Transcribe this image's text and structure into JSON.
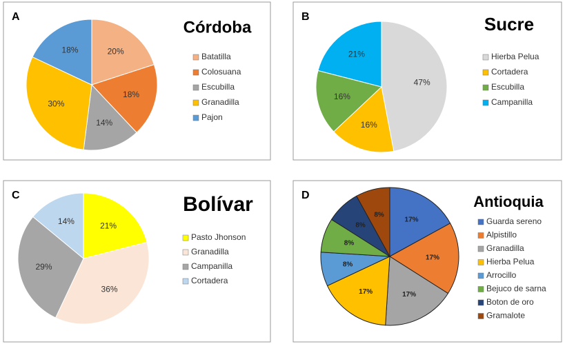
{
  "chart_data": [
    {
      "type": "pie",
      "panel": "A",
      "title": "Córdoba",
      "categories": [
        "Batatilla",
        "Colosuana",
        "Escubilla",
        "Granadilla",
        "Pajon"
      ],
      "values": [
        20,
        18,
        14,
        30,
        18
      ],
      "value_labels": [
        "20%",
        "18%",
        "14%",
        "30%",
        "18%"
      ],
      "colors": [
        "#f4b183",
        "#ed7d31",
        "#a5a5a5",
        "#ffc000",
        "#5b9bd5"
      ]
    },
    {
      "type": "pie",
      "panel": "B",
      "title": "Sucre",
      "categories": [
        "Hierba Pelua",
        "Cortadera",
        "Escubilla",
        "Campanilla"
      ],
      "values": [
        47,
        16,
        16,
        21
      ],
      "value_labels": [
        "47%",
        "16%",
        "16%",
        "21%"
      ],
      "colors": [
        "#d9d9d9",
        "#ffc000",
        "#70ad47",
        "#00b0f0"
      ]
    },
    {
      "type": "pie",
      "panel": "C",
      "title": "Bolívar",
      "categories": [
        "Pasto Jhonson",
        "Granadilla",
        "Campanilla",
        "Cortadera"
      ],
      "values": [
        21,
        36,
        29,
        14
      ],
      "value_labels": [
        "21%",
        "36%",
        "29%",
        "14%"
      ],
      "colors": [
        "#ffff00",
        "#fbe5d6",
        "#a6a6a6",
        "#bdd7ee"
      ]
    },
    {
      "type": "pie",
      "panel": "D",
      "title": "Antioquia",
      "categories": [
        "Guarda sereno",
        "Alpistillo",
        "Granadilla",
        "Hierba Pelua",
        "Arrocillo",
        "Bejuco de sarna",
        "Boton de oro",
        "Gramalote"
      ],
      "values": [
        17,
        17,
        17,
        17,
        8,
        8,
        8,
        8
      ],
      "value_labels": [
        "17%",
        "17%",
        "17%",
        "17%",
        "8%",
        "8%",
        "8%",
        "8%"
      ],
      "colors": [
        "#4472c4",
        "#ed7d31",
        "#a5a5a5",
        "#ffc000",
        "#5b9bd5",
        "#70ad47",
        "#264478",
        "#9e480e"
      ]
    }
  ]
}
